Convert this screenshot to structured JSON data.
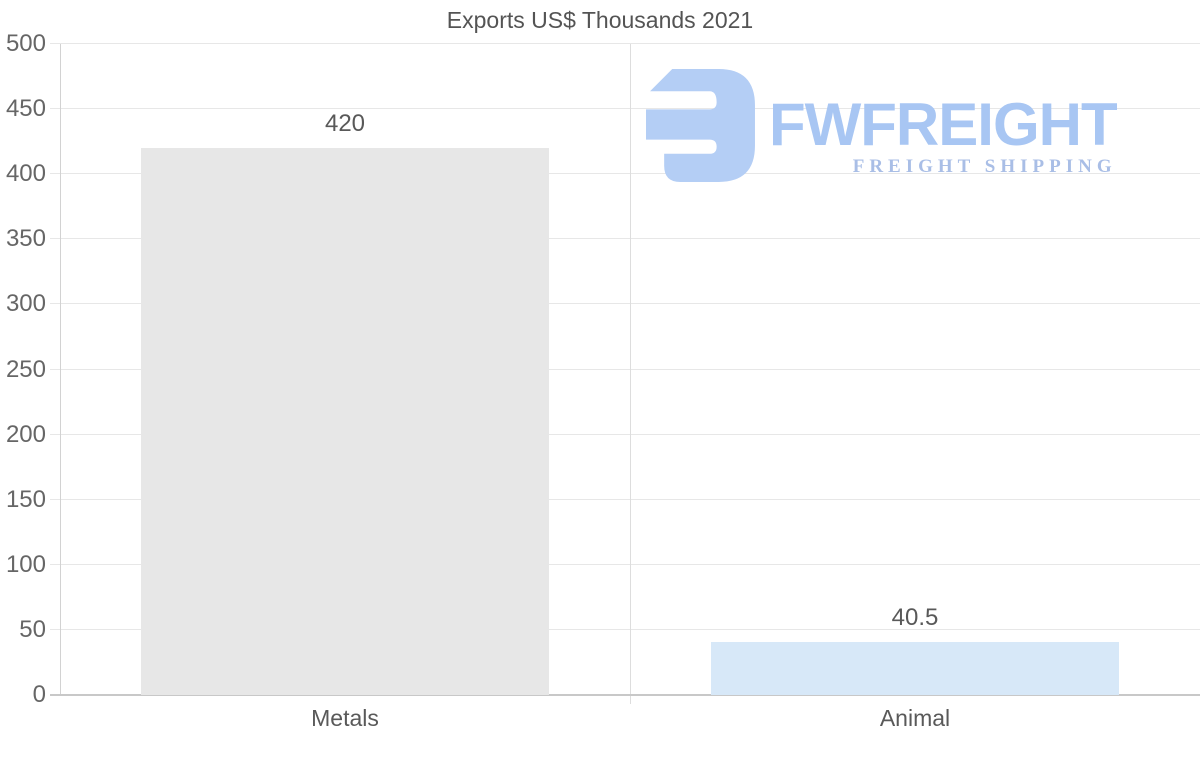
{
  "logo": {
    "name": "FWFREIGHT",
    "tagline": "FREIGHT SHIPPING",
    "icon": "fwfreight-mark",
    "name_color": "#a8c6f3",
    "tagline_color": "#a9bee6",
    "icon_color": "#b4cef5"
  },
  "chart_data": {
    "type": "bar",
    "title": "Exports US$ Thousands 2021",
    "categories": [
      "Metals",
      "Animal"
    ],
    "values": [
      420,
      40.5
    ],
    "value_labels": [
      "420",
      "40.5"
    ],
    "bar_colors": [
      "#e7e7e7",
      "#d7e8f8"
    ],
    "xlabel": "",
    "ylabel": "",
    "ylim": [
      0,
      500
    ],
    "yticks": [
      0,
      50,
      100,
      150,
      200,
      250,
      300,
      350,
      400,
      450,
      500
    ],
    "grid": true,
    "legend": false,
    "tick_color": "#666666",
    "label_color": "#595959",
    "title_color": "#545454"
  }
}
